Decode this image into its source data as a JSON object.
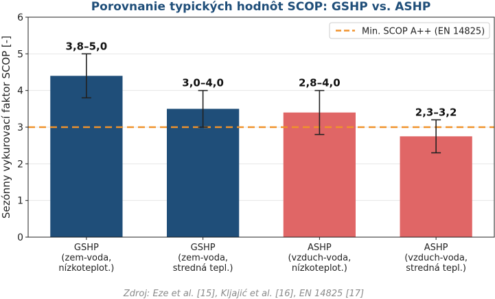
{
  "chart_data": {
    "type": "bar",
    "title": "Porovnanie typických hodnôt SCOP: GSHP vs. ASHP",
    "ylabel": "Sezónny vykurovací faktor SCOP [-]",
    "xlabel": "",
    "ylim": [
      0,
      6
    ],
    "yticks": [
      0,
      1,
      2,
      3,
      4,
      5,
      6
    ],
    "grid": "horizontal",
    "categories": [
      [
        "GSHP",
        "(zem-voda,",
        "nízkoteplot.)"
      ],
      [
        "GSHP",
        "(zem-voda,",
        "stredná tepl.)"
      ],
      [
        "ASHP",
        "(vzduch-voda,",
        "nízkoteplot.)"
      ],
      [
        "ASHP",
        "(vzduch-voda,",
        "stredná tepl.)"
      ]
    ],
    "values": [
      4.4,
      3.5,
      3.4,
      2.75
    ],
    "error_low": [
      3.8,
      3.0,
      2.8,
      2.3
    ],
    "error_high": [
      5.0,
      4.0,
      4.0,
      3.2
    ],
    "bar_labels": [
      "3,8–5,0",
      "3,0–4,0",
      "2,8–4,0",
      "2,3–3,2"
    ],
    "bar_colors": [
      "#1f4e79",
      "#1f4e79",
      "#e06666",
      "#e06666"
    ],
    "reference_line": {
      "value": 3.0,
      "label": "Min. SCOP A++ (EN 14825)",
      "color": "#f0922b",
      "style": "dashed"
    },
    "legend_position": "top-right",
    "title_color": "#1f4e79"
  },
  "source_note": "Zdroj: Eze et al. [15], Kljajić et al. [16], EN 14825 [17]"
}
